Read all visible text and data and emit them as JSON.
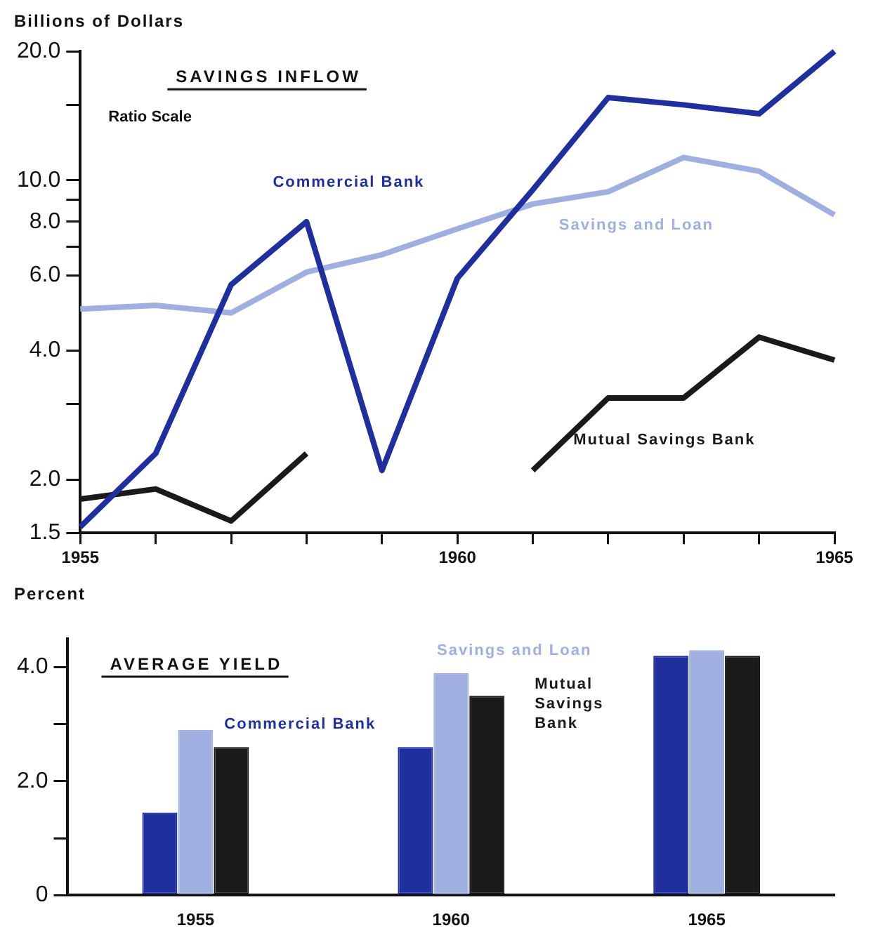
{
  "chart_data": [
    {
      "type": "line",
      "title": "SAVINGS INFLOW",
      "subtitle": "Ratio Scale",
      "ylabel": "Billions of Dollars",
      "x": [
        1955,
        1956,
        1957,
        1958,
        1959,
        1960,
        1961,
        1962,
        1963,
        1964,
        1965
      ],
      "series": [
        {
          "name": "Commercial Bank",
          "color": "#1f2f9e",
          "values": [
            1.55,
            2.3,
            5.7,
            8.0,
            2.1,
            5.9,
            9.5,
            15.6,
            15.0,
            14.3,
            20.0
          ]
        },
        {
          "name": "Savings and Loan",
          "color": "#9fb0e0",
          "values": [
            5.0,
            5.1,
            4.9,
            6.1,
            6.7,
            7.7,
            8.8,
            9.4,
            11.3,
            10.5,
            8.3
          ]
        },
        {
          "name": "Mutual Savings Bank",
          "color": "#1a1a1a",
          "values": [
            1.8,
            1.9,
            1.6,
            2.3,
            null,
            null,
            2.1,
            3.1,
            3.1,
            4.3,
            3.8
          ]
        }
      ],
      "log": "y",
      "xlim": [
        1955,
        1965
      ],
      "xticks": [
        1955,
        {
          "value": 1956,
          "label": null
        },
        {
          "value": 1957,
          "label": null
        },
        {
          "value": 1958,
          "label": null
        },
        {
          "value": 1959,
          "label": null
        },
        1960,
        {
          "value": 1961,
          "label": null
        },
        {
          "value": 1962,
          "label": null
        },
        {
          "value": 1963,
          "label": null
        },
        {
          "value": 1964,
          "label": null
        },
        1965
      ],
      "ylim": [
        1.5,
        20
      ],
      "yticks": [
        {
          "value": 1.5,
          "label": "1.5"
        },
        {
          "value": 2,
          "label": "2.0"
        },
        {
          "value": 3,
          "label": null
        },
        {
          "value": 4,
          "label": "4.0"
        },
        {
          "value": 6,
          "label": "6.0"
        },
        {
          "value": 7,
          "label": null
        },
        {
          "value": 8,
          "label": "8.0"
        },
        {
          "value": 9,
          "label": null
        },
        {
          "value": 10,
          "label": "10.0"
        },
        {
          "value": 15,
          "label": null
        },
        {
          "value": 20,
          "label": "20.0"
        }
      ],
      "marker": "none",
      "grid": false,
      "legend": false
    },
    {
      "type": "bar",
      "title": "AVERAGE YIELD",
      "ylabel": "Percent",
      "categories": [
        "1955",
        "1960",
        "1965"
      ],
      "series": [
        {
          "name": "Commercial Bank",
          "color": "#1f2f9e",
          "values": [
            1.45,
            2.6,
            4.2
          ]
        },
        {
          "name": "Savings and Loan",
          "color": "#9fb0e0",
          "values": [
            2.9,
            3.9,
            4.3
          ]
        },
        {
          "name": "Mutual Savings Bank",
          "color": "#1a1a1a",
          "values": [
            2.6,
            3.5,
            4.2
          ]
        }
      ],
      "ylim": [
        0,
        4.5
      ],
      "yticks": [
        0,
        {
          "value": 1,
          "label": null
        },
        {
          "value": 2,
          "label": "2.0"
        },
        {
          "value": 3,
          "label": null
        },
        {
          "value": 4,
          "label": "4.0"
        }
      ],
      "grid": false,
      "legend": false
    }
  ]
}
